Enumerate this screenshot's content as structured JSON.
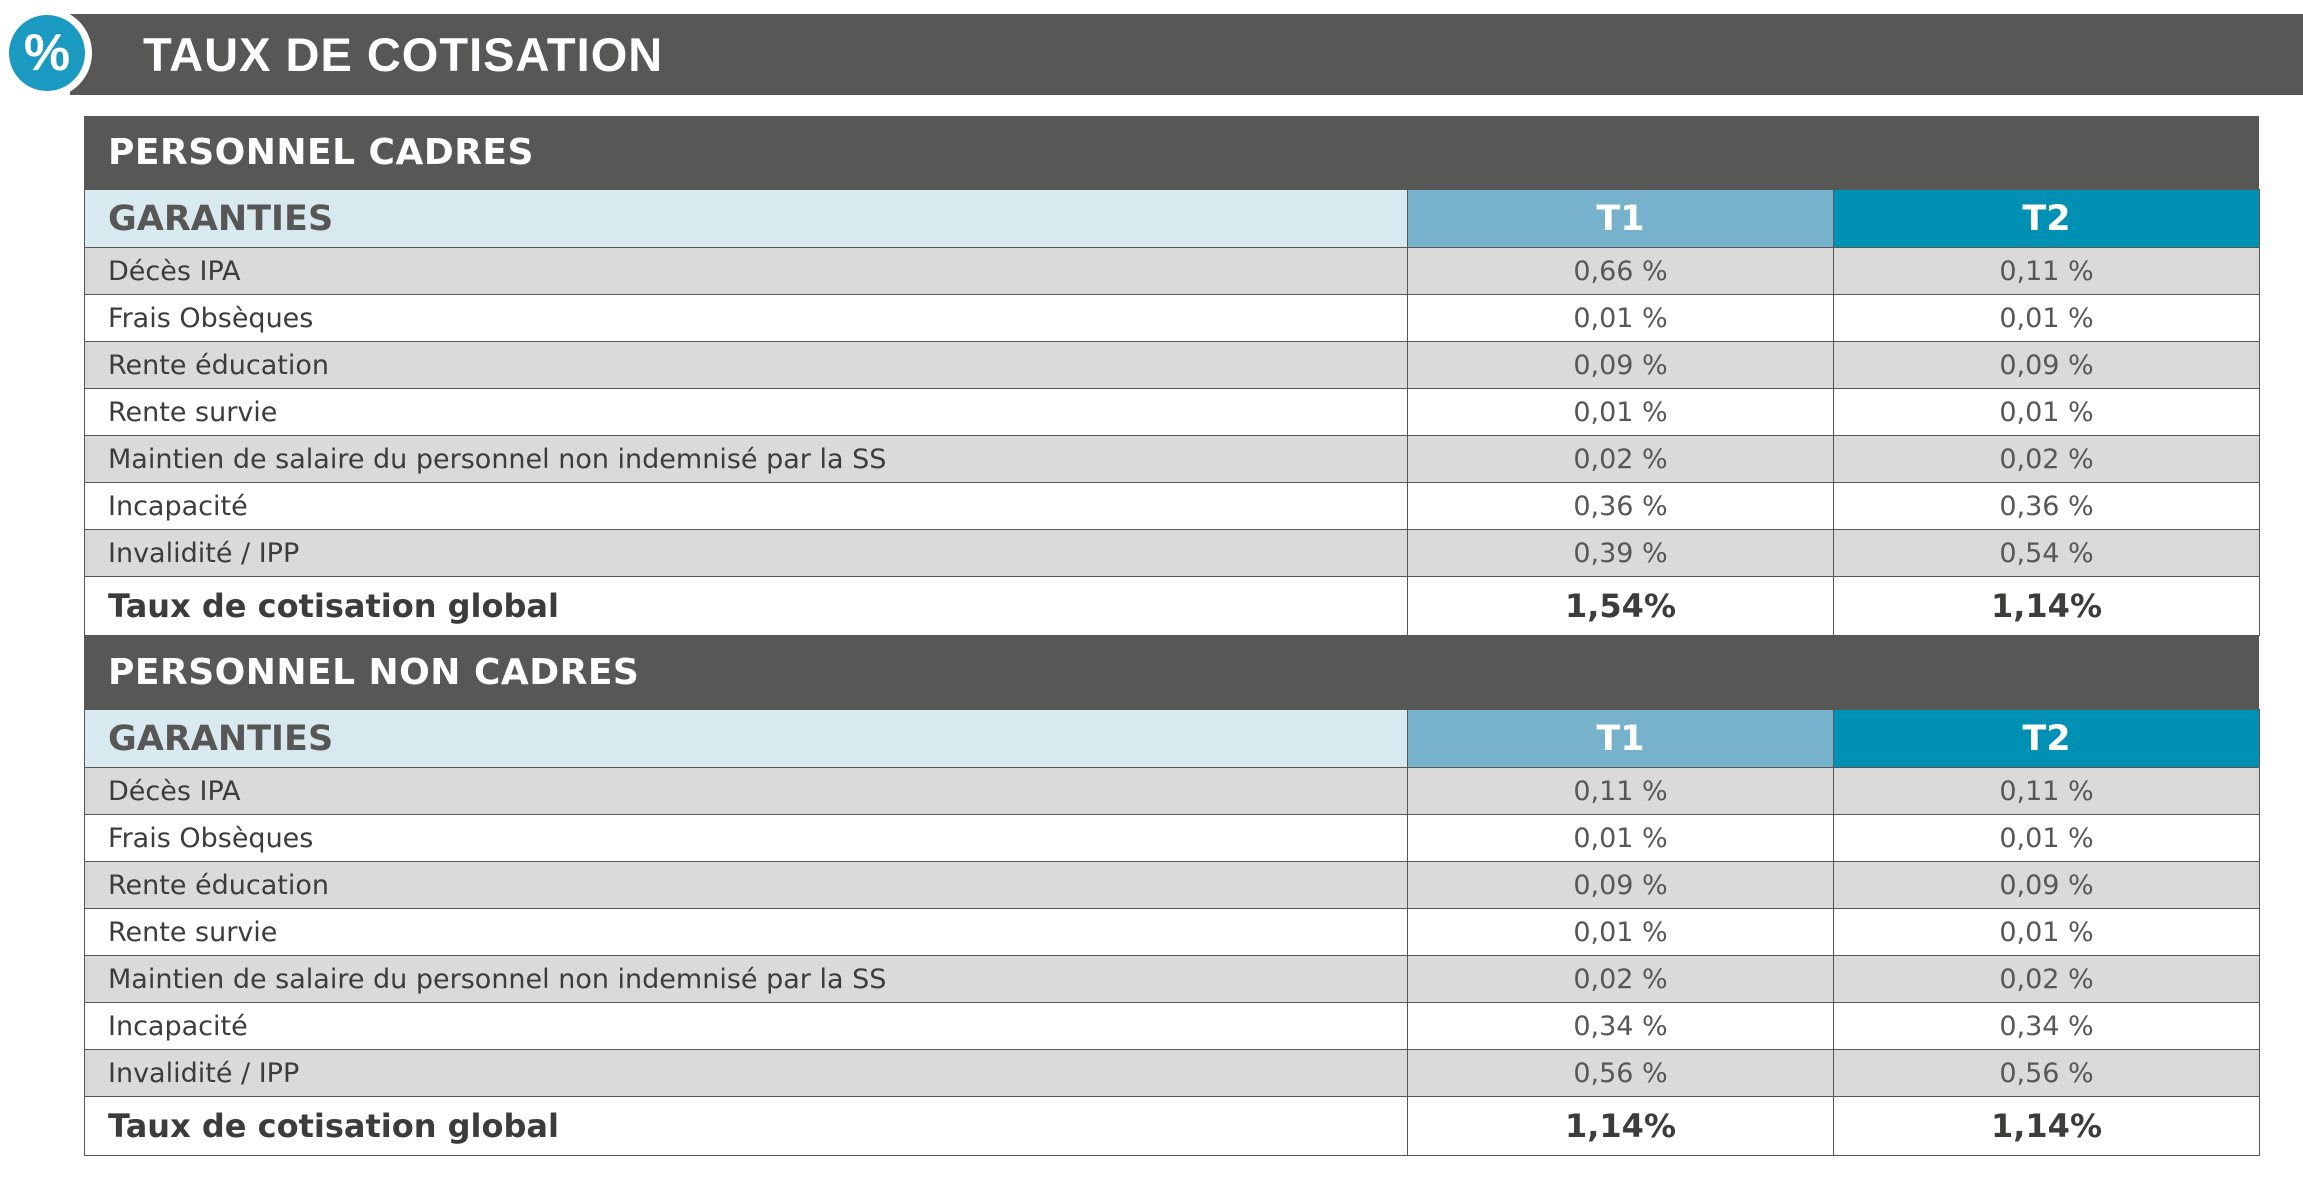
{
  "header": {
    "badge_symbol": "%",
    "title": "TAUX DE COTISATION"
  },
  "sections": [
    {
      "title": "PERSONNEL CADRES",
      "columns": [
        "GARANTIES",
        "T1",
        "T2"
      ],
      "rows": [
        {
          "label": "Décès IPA",
          "t1": "0,66 %",
          "t2": "0,11 %"
        },
        {
          "label": "Frais Obsèques",
          "t1": "0,01 %",
          "t2": "0,01 %"
        },
        {
          "label": "Rente éducation",
          "t1": "0,09 %",
          "t2": "0,09 %"
        },
        {
          "label": "Rente survie",
          "t1": "0,01 %",
          "t2": "0,01 %"
        },
        {
          "label": "Maintien de salaire du personnel non indemnisé par la SS",
          "t1": "0,02 %",
          "t2": "0,02 %"
        },
        {
          "label": "Incapacité",
          "t1": "0,36 %",
          "t2": "0,36 %"
        },
        {
          "label": "Invalidité / IPP",
          "t1": "0,39 %",
          "t2": "0,54 %"
        }
      ],
      "total": {
        "label": "Taux de cotisation global",
        "t1": "1,54%",
        "t2": "1,14%"
      }
    },
    {
      "title": "PERSONNEL NON CADRES",
      "columns": [
        "GARANTIES",
        "T1",
        "T2"
      ],
      "rows": [
        {
          "label": "Décès IPA",
          "t1": "0,11 %",
          "t2": "0,11 %"
        },
        {
          "label": "Frais Obsèques",
          "t1": "0,01 %",
          "t2": "0,01 %"
        },
        {
          "label": "Rente éducation",
          "t1": "0,09 %",
          "t2": "0,09 %"
        },
        {
          "label": "Rente survie",
          "t1": "0,01 %",
          "t2": "0,01 %"
        },
        {
          "label": "Maintien de salaire du personnel non indemnisé par la SS",
          "t1": "0,02 %",
          "t2": "0,02 %"
        },
        {
          "label": "Incapacité",
          "t1": "0,34 %",
          "t2": "0,34 %"
        },
        {
          "label": "Invalidité / IPP",
          "t1": "0,56 %",
          "t2": "0,56 %"
        }
      ],
      "total": {
        "label": "Taux de cotisation global",
        "t1": "1,14%",
        "t2": "1,14%"
      }
    }
  ],
  "colors": {
    "banner": "#575756",
    "badge": "#1a9ac0",
    "header_garanties": "#d9e9f0",
    "header_t1": "#76b2cc",
    "header_t2": "#0090b3",
    "row_shade": "#dadada"
  }
}
